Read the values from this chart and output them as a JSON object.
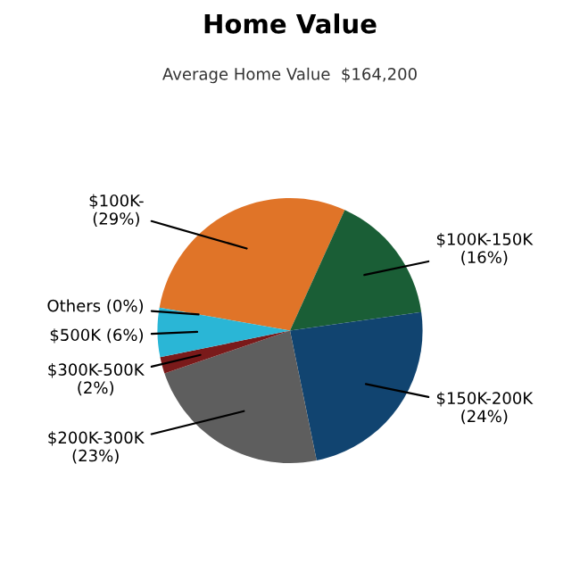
{
  "chart_data": {
    "type": "pie",
    "title": "Home Value",
    "subtitle": "Average Home Value  $164,200",
    "categories": [
      "$100K-",
      "$100K-150K",
      "$150K-200K",
      "$200K-300K",
      "$300K-500K",
      "$500K",
      "Others"
    ],
    "values": [
      29,
      16,
      24,
      23,
      2,
      6,
      0
    ],
    "value_labels": [
      "(29%)",
      "(16%)",
      "(24%)",
      "(23%)",
      "(2%)",
      "(6%)",
      "(0%)"
    ],
    "colors": [
      "#e07428",
      "#1a5e36",
      "#114470",
      "#5e5e5e",
      "#7a1a1a",
      "#2ab6d6",
      "#9a9a9a"
    ]
  }
}
